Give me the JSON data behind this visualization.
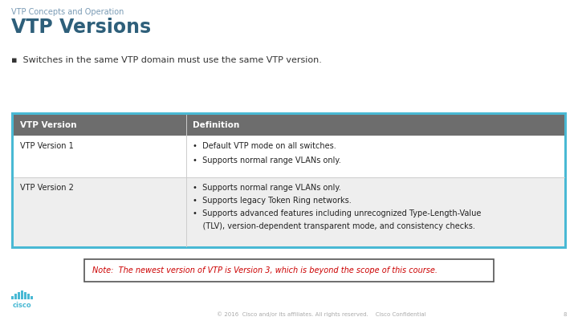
{
  "bg_color": "#ffffff",
  "subtitle": "VTP Concepts and Operation",
  "title": "VTP Versions",
  "bullet": "Switches in the same VTP domain must use the same VTP version.",
  "table_border_color": "#49b9d4",
  "table_header_bg": "#6d6d6d",
  "table_header_text_color": "#ffffff",
  "table_col1_header": "VTP Version",
  "table_col2_header": "Definition",
  "row1_col1": "VTP Version 1",
  "row1_col2_bullets": [
    "Default VTP mode on all switches.",
    "Supports normal range VLANs only."
  ],
  "row2_col1": "VTP Version 2",
  "row2_col2_line1": "Supports normal range VLANs only.",
  "row2_col2_line2": "Supports legacy Token Ring networks.",
  "row2_col2_line3a": "Supports advanced features including unrecognized Type-Length-Value",
  "row2_col2_line3b": "    (TLV), version-dependent transparent mode, and consistency checks.",
  "note_text": "Note:  The newest version of VTP is Version 3, which is beyond the scope of this course.",
  "note_border_color": "#555555",
  "note_text_color": "#cc0000",
  "footer_text": "© 2016  Cisco and/or its affiliates. All rights reserved.    Cisco Confidential",
  "footer_page": "8",
  "cisco_logo_color": "#49b9d4",
  "subtitle_color": "#7a9bb5",
  "title_color": "#2e5f7a",
  "bullet_color": "#333333"
}
